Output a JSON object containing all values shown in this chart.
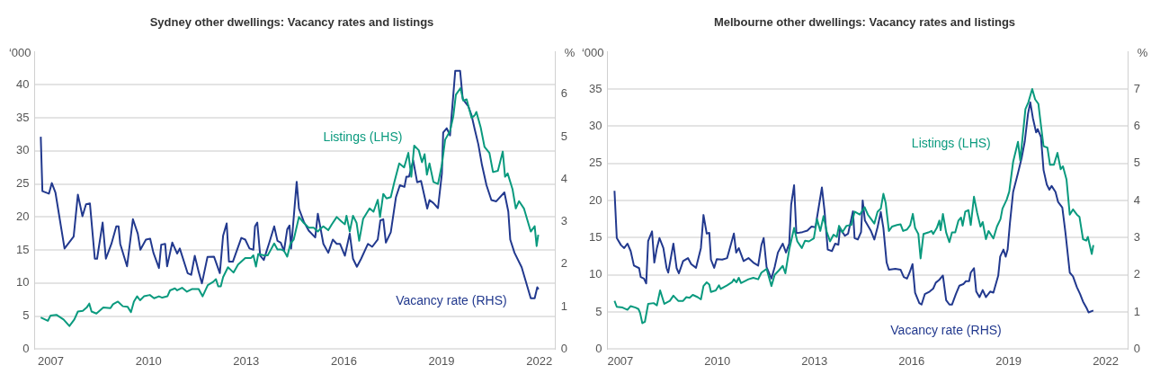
{
  "chart_data": [
    {
      "type": "line",
      "title": "Sydney other dwellings: Vacancy rates and listings",
      "ylabel": "‘000",
      "y2label": "%",
      "xlim": [
        2006.5,
        2022.5
      ],
      "xticks": [
        2007,
        2010,
        2013,
        2016,
        2019,
        2022
      ],
      "ylim": [
        0,
        45
      ],
      "yticks": [
        0,
        5,
        10,
        15,
        20,
        25,
        30,
        35,
        40
      ],
      "y2lim": [
        0,
        7
      ],
      "y2ticks": [
        0,
        1,
        2,
        3,
        4,
        5,
        6
      ],
      "grid": "y",
      "marker": "none",
      "line_style": "solid",
      "series": [
        {
          "name": "Listings (LHS)",
          "color": "#0a9a7e",
          "x": [
            2006.69,
            2006.91,
            2006.99,
            2007.17,
            2007.39,
            2007.57,
            2007.72,
            2007.83,
            2007.98,
            2008.1,
            2008.18,
            2008.25,
            2008.4,
            2008.61,
            2008.83,
            2008.91,
            2009.06,
            2009.21,
            2009.36,
            2009.46,
            2009.55,
            2009.65,
            2009.74,
            2009.86,
            2010.04,
            2010.17,
            2010.32,
            2010.42,
            2010.58,
            2010.66,
            2010.81,
            2010.88,
            2011.03,
            2011.18,
            2011.33,
            2011.43,
            2011.54,
            2011.66,
            2011.82,
            2011.99,
            2012.07,
            2012.14,
            2012.22,
            2012.29,
            2012.44,
            2012.61,
            2012.75,
            2012.97,
            2013.15,
            2013.22,
            2013.3,
            2013.37,
            2013.54,
            2013.66,
            2013.74,
            2013.86,
            2013.96,
            2014.06,
            2014.16,
            2014.26,
            2014.36,
            2014.46,
            2014.62,
            2014.77,
            2014.92,
            2015.07,
            2015.2,
            2015.27,
            2015.37,
            2015.52,
            2015.63,
            2015.78,
            2015.93,
            2016.03,
            2016.08,
            2016.18,
            2016.28,
            2016.39,
            2016.47,
            2016.59,
            2016.79,
            2016.91,
            2017.04,
            2017.11,
            2017.21,
            2017.31,
            2017.44,
            2017.55,
            2017.7,
            2017.85,
            2017.98,
            2018.07,
            2018.16,
            2018.3,
            2018.4,
            2018.48,
            2018.55,
            2018.63,
            2018.75,
            2018.89,
            2019.01,
            2019.11,
            2019.26,
            2019.36,
            2019.44,
            2019.58,
            2019.67,
            2019.77,
            2019.84,
            2019.92,
            2020.02,
            2020.07,
            2020.2,
            2020.32,
            2020.47,
            2020.58,
            2020.73,
            2020.88,
            2020.95,
            2021.03,
            2021.18,
            2021.28,
            2021.38,
            2021.53,
            2021.74,
            2021.86,
            2021.92,
            2021.97
          ],
          "values": [
            4.8,
            4.3,
            5.1,
            5.2,
            4.5,
            3.5,
            4.5,
            5.7,
            5.8,
            6.3,
            6.9,
            5.7,
            5.4,
            6.3,
            6.2,
            6.8,
            7.2,
            6.5,
            6.4,
            5.6,
            7.2,
            8.0,
            7.4,
            8.0,
            8.2,
            7.7,
            8.0,
            7.8,
            8.0,
            8.9,
            9.2,
            8.9,
            9.3,
            8.7,
            9.1,
            9.1,
            9.1,
            8.0,
            9.7,
            10.2,
            10.6,
            9.5,
            9.5,
            10.9,
            12.4,
            11.6,
            12.8,
            13.8,
            13.8,
            14.2,
            12.5,
            14.4,
            14.2,
            14.2,
            14.9,
            16.0,
            15.1,
            15.1,
            14.9,
            14.0,
            16.0,
            16.6,
            20.0,
            19.1,
            18.4,
            18.4,
            17.8,
            18.2,
            18.6,
            18.0,
            18.9,
            20.0,
            19.3,
            18.9,
            20.2,
            17.8,
            20.2,
            19.1,
            16.4,
            19.7,
            21.3,
            20.8,
            22.6,
            20.0,
            23.5,
            22.8,
            23.0,
            25.3,
            28.1,
            27.5,
            29.7,
            26.1,
            30.8,
            30.1,
            28.3,
            29.5,
            26.4,
            28.1,
            25.3,
            25.0,
            27.9,
            31.7,
            33.0,
            35.2,
            38.5,
            39.5,
            37.6,
            37.8,
            36.5,
            35.0,
            35.4,
            35.9,
            33.6,
            30.6,
            29.7,
            26.8,
            27.0,
            29.9,
            26.1,
            26.6,
            24.2,
            21.3,
            22.4,
            21.3,
            17.8,
            18.6,
            15.6,
            17.3
          ]
        },
        {
          "name": "Vacancy rate (RHS)",
          "color": "#22398e",
          "axis": "y2",
          "x": [
            2006.69,
            2006.74,
            2006.94,
            2007.03,
            2007.14,
            2007.42,
            2007.7,
            2007.83,
            2007.97,
            2008.08,
            2008.2,
            2008.35,
            2008.42,
            2008.59,
            2008.69,
            2008.86,
            2009.01,
            2009.08,
            2009.13,
            2009.34,
            2009.52,
            2009.67,
            2009.75,
            2009.92,
            2010.05,
            2010.15,
            2010.32,
            2010.39,
            2010.51,
            2010.57,
            2010.73,
            2010.88,
            2010.96,
            2011.2,
            2011.31,
            2011.42,
            2011.54,
            2011.64,
            2011.81,
            2012.01,
            2012.19,
            2012.29,
            2012.4,
            2012.47,
            2012.59,
            2012.85,
            2012.97,
            2013.1,
            2013.22,
            2013.27,
            2013.34,
            2013.43,
            2013.54,
            2013.71,
            2013.86,
            2013.96,
            2014.06,
            2014.16,
            2014.26,
            2014.33,
            2014.38,
            2014.55,
            2014.62,
            2014.77,
            2014.92,
            2015.12,
            2015.2,
            2015.37,
            2015.52,
            2015.66,
            2015.78,
            2015.88,
            2016.03,
            2016.18,
            2016.28,
            2016.4,
            2016.53,
            2016.74,
            2016.87,
            2017.04,
            2017.12,
            2017.21,
            2017.29,
            2017.44,
            2017.6,
            2017.72,
            2017.86,
            2017.92,
            2018.0,
            2018.13,
            2018.25,
            2018.37,
            2018.56,
            2018.63,
            2018.75,
            2018.89,
            2019.01,
            2019.05,
            2019.16,
            2019.26,
            2019.42,
            2019.57,
            2019.65,
            2019.82,
            2019.92,
            2020.02,
            2020.13,
            2020.24,
            2020.38,
            2020.53,
            2020.68,
            2020.93,
            2021.05,
            2021.11,
            2021.24,
            2021.46,
            2021.74,
            2021.86,
            2021.94,
            2021.98
          ],
          "values": [
            5.0,
            3.72,
            3.66,
            3.91,
            3.69,
            2.37,
            2.65,
            3.64,
            3.13,
            3.41,
            3.43,
            2.13,
            2.13,
            2.98,
            2.13,
            2.48,
            2.89,
            2.89,
            2.48,
            1.95,
            3.06,
            2.72,
            2.34,
            2.58,
            2.6,
            2.27,
            1.91,
            2.46,
            2.48,
            1.95,
            2.51,
            2.25,
            2.37,
            1.79,
            1.75,
            2.2,
            1.82,
            1.55,
            2.17,
            2.18,
            1.79,
            2.67,
            2.96,
            2.06,
            2.06,
            2.62,
            2.58,
            2.37,
            2.34,
            2.89,
            2.98,
            2.2,
            2.1,
            2.51,
            2.89,
            2.55,
            2.51,
            2.31,
            2.82,
            2.91,
            2.37,
            3.94,
            3.31,
            3.0,
            2.79,
            2.63,
            3.19,
            2.48,
            2.27,
            2.58,
            2.48,
            2.48,
            2.2,
            2.72,
            2.13,
            1.94,
            2.13,
            2.48,
            2.41,
            2.58,
            3.03,
            3.06,
            2.51,
            2.75,
            3.58,
            3.86,
            3.82,
            4.06,
            4.06,
            4.44,
            3.93,
            3.96,
            3.31,
            3.51,
            3.44,
            3.32,
            4.13,
            5.1,
            5.2,
            5.03,
            6.55,
            6.55,
            5.89,
            5.72,
            5.51,
            5.17,
            4.82,
            4.34,
            3.86,
            3.51,
            3.48,
            3.69,
            3.24,
            2.58,
            2.27,
            1.93,
            1.2,
            1.2,
            1.46,
            1.41
          ]
        }
      ]
    },
    {
      "type": "line",
      "title": "Melbourne other dwellings: Vacancy rates and listings",
      "ylabel": "‘000",
      "y2label": "%",
      "xlim": [
        2006.6,
        2022.7
      ],
      "xticks": [
        2007,
        2010,
        2013,
        2016,
        2019,
        2022
      ],
      "ylim": [
        0,
        40
      ],
      "yticks": [
        0,
        5,
        10,
        15,
        20,
        25,
        30,
        35
      ],
      "y2lim": [
        0,
        8
      ],
      "y2ticks": [
        0,
        1,
        2,
        3,
        4,
        5,
        6,
        7
      ],
      "grid": "y",
      "marker": "none",
      "line_style": "solid",
      "series": [
        {
          "name": "Listings (LHS)",
          "color": "#0a9a7e",
          "x": [
            2006.82,
            2006.89,
            2007.07,
            2007.22,
            2007.32,
            2007.47,
            2007.56,
            2007.61,
            2007.68,
            2007.76,
            2007.86,
            2008.03,
            2008.13,
            2008.23,
            2008.36,
            2008.53,
            2008.64,
            2008.79,
            2008.94,
            2009.04,
            2009.14,
            2009.24,
            2009.39,
            2009.49,
            2009.57,
            2009.67,
            2009.75,
            2009.8,
            2009.95,
            2010.05,
            2010.1,
            2010.3,
            2010.45,
            2010.51,
            2010.59,
            2010.66,
            2010.73,
            2010.96,
            2011.11,
            2011.26,
            2011.36,
            2011.52,
            2011.67,
            2011.77,
            2011.9,
            2012.02,
            2012.1,
            2012.22,
            2012.37,
            2012.47,
            2012.61,
            2012.71,
            2012.83,
            2012.98,
            2013.08,
            2013.18,
            2013.28,
            2013.38,
            2013.48,
            2013.59,
            2013.69,
            2013.76,
            2013.86,
            2013.99,
            2014.14,
            2014.24,
            2014.4,
            2014.55,
            2014.65,
            2014.75,
            2014.85,
            2014.95,
            2015.05,
            2015.13,
            2015.2,
            2015.3,
            2015.4,
            2015.55,
            2015.66,
            2015.74,
            2015.86,
            2015.96,
            2016.04,
            2016.11,
            2016.21,
            2016.28,
            2016.37,
            2016.52,
            2016.62,
            2016.67,
            2016.78,
            2016.86,
            2016.9,
            2016.97,
            2017.07,
            2017.17,
            2017.25,
            2017.35,
            2017.45,
            2017.53,
            2017.58,
            2017.66,
            2017.76,
            2017.83,
            2017.93,
            2018.03,
            2018.13,
            2018.2,
            2018.3,
            2018.38,
            2018.53,
            2018.64,
            2018.75,
            2018.81,
            2018.94,
            2019.02,
            2019.14,
            2019.29,
            2019.36,
            2019.52,
            2019.61,
            2019.73,
            2019.82,
            2019.92,
            2020.0,
            2020.08,
            2020.2,
            2020.28,
            2020.4,
            2020.51,
            2020.61,
            2020.68,
            2020.79,
            2020.89,
            2020.99,
            2021.11,
            2021.19,
            2021.3,
            2021.4,
            2021.45,
            2021.57,
            2021.62
          ],
          "values": [
            6.5,
            5.7,
            5.6,
            5.3,
            5.8,
            5.6,
            5.4,
            4.9,
            3.5,
            3.7,
            6.1,
            6.2,
            5.9,
            7.9,
            6.1,
            6.5,
            7.2,
            6.5,
            6.5,
            7.0,
            6.9,
            7.3,
            7.0,
            6.7,
            8.5,
            9.0,
            8.7,
            7.7,
            7.9,
            8.6,
            8.1,
            8.6,
            9.0,
            9.4,
            9.0,
            9.6,
            8.9,
            9.4,
            9.6,
            9.4,
            10.3,
            10.8,
            8.5,
            10.0,
            10.6,
            11.2,
            10.2,
            13.4,
            16.3,
            14.5,
            13.6,
            14.6,
            14.5,
            14.9,
            17.5,
            15.9,
            17.9,
            15.8,
            14.5,
            15.4,
            15.1,
            16.6,
            15.7,
            16.6,
            16.7,
            18.5,
            18.1,
            19.1,
            18.1,
            17.5,
            16.9,
            18.5,
            18.9,
            20.9,
            19.7,
            15.9,
            16.5,
            16.7,
            16.8,
            15.9,
            16.1,
            16.7,
            18.2,
            16.3,
            15.5,
            12.2,
            15.5,
            15.7,
            15.9,
            15.5,
            16.3,
            17.3,
            16.0,
            18.2,
            15.7,
            14.4,
            15.7,
            15.7,
            17.3,
            17.7,
            16.6,
            18.5,
            18.7,
            16.7,
            20.5,
            18.3,
            16.5,
            17.1,
            14.8,
            15.9,
            14.9,
            16.5,
            17.5,
            18.9,
            20.1,
            21.2,
            25.2,
            27.9,
            25.4,
            32.3,
            33.2,
            35.0,
            33.6,
            33.0,
            30.1,
            27.3,
            27.1,
            24.8,
            24.8,
            26.4,
            24.2,
            24.6,
            22.8,
            18.1,
            18.8,
            18.1,
            17.8,
            14.8,
            14.6,
            15.1,
            12.8,
            14.0
          ]
        },
        {
          "name": "Vacancy rate (RHS)",
          "color": "#22398e",
          "axis": "y2",
          "x": [
            2006.82,
            2006.89,
            2007.02,
            2007.12,
            2007.22,
            2007.32,
            2007.42,
            2007.58,
            2007.63,
            2007.73,
            2007.8,
            2007.86,
            2007.98,
            2008.05,
            2008.13,
            2008.21,
            2008.33,
            2008.43,
            2008.48,
            2008.64,
            2008.74,
            2008.81,
            2008.94,
            2009.09,
            2009.19,
            2009.34,
            2009.49,
            2009.57,
            2009.67,
            2009.75,
            2009.8,
            2009.9,
            2009.98,
            2010.15,
            2010.3,
            2010.51,
            2010.58,
            2010.66,
            2010.81,
            2010.96,
            2011.11,
            2011.26,
            2011.36,
            2011.43,
            2011.52,
            2011.67,
            2011.77,
            2011.87,
            2012.02,
            2012.12,
            2012.22,
            2012.28,
            2012.37,
            2012.44,
            2012.63,
            2012.78,
            2012.91,
            2013.03,
            2013.23,
            2013.31,
            2013.41,
            2013.54,
            2013.64,
            2013.74,
            2013.79,
            2013.94,
            2014.04,
            2014.19,
            2014.24,
            2014.34,
            2014.44,
            2014.49,
            2014.56,
            2014.64,
            2014.74,
            2014.85,
            2014.95,
            2015.05,
            2015.13,
            2015.23,
            2015.3,
            2015.5,
            2015.66,
            2015.76,
            2015.86,
            2015.94,
            2016.03,
            2016.11,
            2016.24,
            2016.31,
            2016.41,
            2016.56,
            2016.67,
            2016.75,
            2016.85,
            2016.97,
            2017.07,
            2017.17,
            2017.25,
            2017.37,
            2017.48,
            2017.6,
            2017.68,
            2017.78,
            2017.83,
            2017.93,
            2018.0,
            2018.1,
            2018.2,
            2018.3,
            2018.43,
            2018.53,
            2018.68,
            2018.74,
            2018.84,
            2018.91,
            2018.97,
            2019.04,
            2019.14,
            2019.29,
            2019.4,
            2019.5,
            2019.6,
            2019.67,
            2019.75,
            2019.85,
            2019.9,
            2020.0,
            2020.08,
            2020.18,
            2020.26,
            2020.33,
            2020.45,
            2020.53,
            2020.66,
            2020.76,
            2020.89,
            2020.99,
            2021.11,
            2021.21,
            2021.3,
            2021.42,
            2021.47,
            2021.62
          ],
          "values": [
            4.26,
            2.99,
            2.8,
            2.72,
            2.84,
            2.64,
            2.25,
            2.18,
            1.94,
            1.9,
            1.77,
            2.91,
            3.17,
            2.33,
            2.72,
            2.99,
            2.72,
            2.18,
            2.06,
            2.84,
            2.18,
            2.04,
            2.37,
            2.45,
            2.29,
            2.19,
            2.72,
            3.61,
            3.11,
            3.13,
            2.41,
            2.19,
            2.42,
            2.41,
            2.45,
            3.11,
            2.6,
            2.72,
            2.37,
            2.45,
            2.33,
            2.25,
            2.8,
            2.99,
            2.21,
            1.9,
            2.21,
            2.6,
            2.84,
            2.6,
            2.84,
            3.89,
            4.41,
            3.12,
            3.15,
            3.19,
            3.3,
            3.28,
            4.35,
            3.73,
            2.68,
            2.64,
            2.84,
            2.81,
            3.26,
            3.05,
            3.11,
            3.71,
            2.99,
            2.95,
            3.15,
            4.0,
            3.46,
            3.34,
            3.19,
            2.95,
            3.28,
            3.69,
            3.26,
            2.33,
            2.14,
            2.16,
            2.14,
            1.94,
            1.9,
            2.06,
            2.29,
            1.52,
            1.24,
            1.2,
            1.48,
            1.55,
            1.63,
            1.79,
            1.86,
            1.98,
            1.32,
            1.2,
            1.2,
            1.48,
            1.71,
            1.75,
            1.83,
            1.83,
            2.06,
            2.18,
            1.55,
            1.4,
            1.59,
            1.4,
            1.55,
            1.52,
            1.98,
            2.49,
            2.68,
            2.49,
            2.68,
            3.38,
            4.23,
            4.74,
            5.13,
            5.59,
            6.33,
            6.64,
            6.22,
            5.83,
            5.92,
            5.71,
            4.82,
            4.43,
            4.29,
            4.39,
            4.23,
            3.96,
            3.81,
            3.11,
            2.06,
            1.96,
            1.67,
            1.48,
            1.28,
            1.09,
            0.99,
            1.04
          ]
        }
      ]
    }
  ]
}
